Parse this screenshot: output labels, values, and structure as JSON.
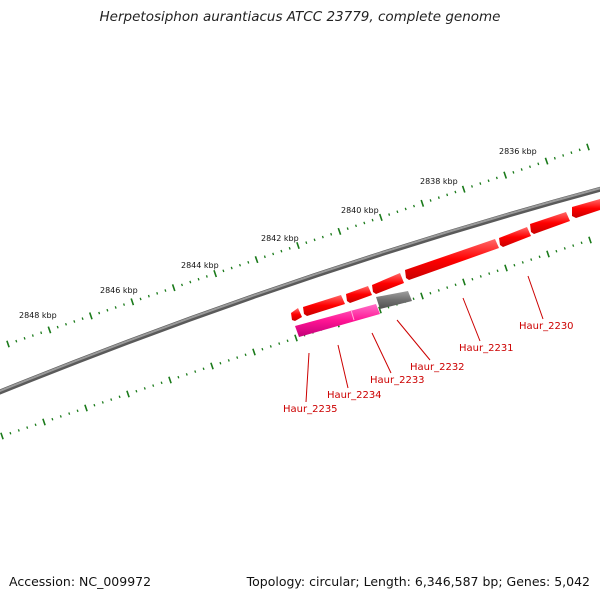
{
  "title": "Herpetosiphon aurantiacus ATCC 23779, complete genome",
  "footer": {
    "accession": "Accession: NC_009972",
    "summary": "Topology: circular; Length: 6,346,587 bp; Genes: 5,042"
  },
  "scale_labels": [
    "2836 kbp",
    "2838 kbp",
    "2840 kbp",
    "2842 kbp",
    "2844 kbp",
    "2846 kbp",
    "2848 kbp"
  ],
  "genes": [
    {
      "label": "Haur_2230",
      "color": "#ff0000",
      "strand": "forward"
    },
    {
      "label": "Haur_2231",
      "color": "#ff0000",
      "strand": "forward"
    },
    {
      "label": "Haur_2232",
      "color": "#ff0000",
      "strand": "forward"
    },
    {
      "label": "Haur_2233",
      "color": "#ff0000",
      "strand": "forward"
    },
    {
      "label": "Haur_2234",
      "color": "#ff0000",
      "strand": "forward"
    },
    {
      "label": "Haur_2235",
      "color": "#ff0000",
      "strand": "forward"
    }
  ],
  "colors": {
    "backbone": "#808080",
    "scale_ticks": "#1a7a1a",
    "cds": "#ff0000",
    "rna": "#ff1493",
    "other": "#707070",
    "label": "#cc0000"
  }
}
